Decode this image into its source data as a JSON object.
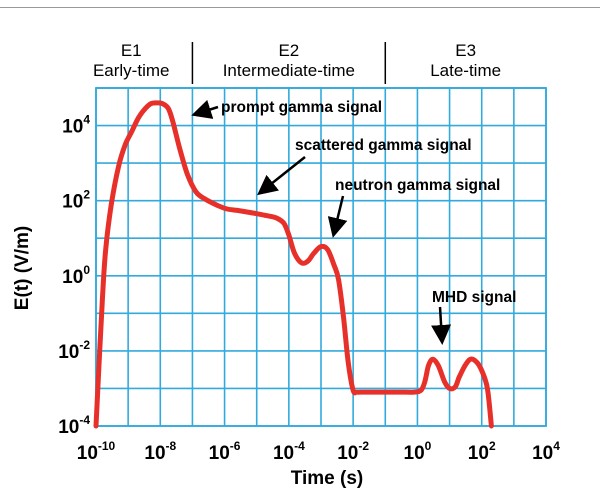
{
  "colors": {
    "grid": "#33aadd",
    "curve": "#e8302a",
    "text": "#000000",
    "arrow": "#000000"
  },
  "chart_data": {
    "type": "line",
    "title": "",
    "xlabel": "Time (s)",
    "ylabel": "E(t) (V/m)",
    "x_scale": "log",
    "y_scale": "log",
    "xlim": [
      1e-10,
      10000.0
    ],
    "ylim": [
      0.0001,
      100000.0
    ],
    "grid": true,
    "x_ticks": [
      {
        "base": "10",
        "exp": "-10"
      },
      {
        "base": "10",
        "exp": "-8"
      },
      {
        "base": "10",
        "exp": "-6"
      },
      {
        "base": "10",
        "exp": "-4"
      },
      {
        "base": "10",
        "exp": "-2"
      },
      {
        "base": "10",
        "exp": "0"
      },
      {
        "base": "10",
        "exp": "2"
      },
      {
        "base": "10",
        "exp": "4"
      }
    ],
    "y_ticks": [
      {
        "base": "10",
        "exp": "-4"
      },
      {
        "base": "10",
        "exp": "-2"
      },
      {
        "base": "10",
        "exp": "0"
      },
      {
        "base": "10",
        "exp": "2"
      },
      {
        "base": "10",
        "exp": "4"
      }
    ],
    "regions": [
      {
        "name": "E1",
        "subtitle": "Early-time",
        "x_start": 1e-10,
        "x_end": 1e-07
      },
      {
        "name": "E2",
        "subtitle": "Intermediate-time",
        "x_start": 1e-07,
        "x_end": 0.1
      },
      {
        "name": "E3",
        "subtitle": "Late-time",
        "x_start": 0.1,
        "x_end": 10000.0
      }
    ],
    "annotations": [
      {
        "text": "prompt gamma signal",
        "point": [
          3e-07,
          10000
        ]
      },
      {
        "text": "scattered gamma signal",
        "point": [
          6e-06,
          80
        ]
      },
      {
        "text": "neutron gamma signal",
        "point": [
          0.0015,
          7
        ]
      },
      {
        "text": "MHD signal",
        "point": [
          5,
          0.006
        ]
      }
    ],
    "series": [
      {
        "x": [
          1e-10,
          1.3e-10,
          1.6e-10,
          2e-10,
          3e-10,
          5e-10,
          8e-10,
          1.3e-09,
          2e-09,
          3e-09,
          5e-09,
          8e-09,
          1.2e-08,
          1.8e-08,
          2.5e-08,
          4e-08,
          7e-08,
          1.3e-07,
          2.5e-07,
          6e-07,
          1.2e-06,
          2.5e-06,
          5e-06,
          1e-05,
          2e-05,
          4e-05,
          7e-05,
          0.0001,
          0.00015,
          0.00025,
          0.0004,
          0.0006,
          0.001,
          0.0016,
          0.0025,
          0.0035,
          0.005,
          0.007,
          0.01,
          0.013,
          0.02,
          0.05,
          0.1,
          0.3,
          0.8,
          1.3,
          1.7,
          2.2,
          3,
          4.5,
          7,
          10,
          15,
          20,
          30,
          45,
          70,
          100,
          150,
          200
        ],
        "y": [
          0.0001,
          0.01,
          0.3,
          5,
          80,
          800,
          3000,
          7000,
          15000,
          25000,
          38000,
          40000,
          38000,
          28000,
          12000,
          2500,
          500,
          170,
          110,
          75,
          60,
          55,
          50,
          45,
          40,
          35,
          25,
          12,
          4,
          2.2,
          2.5,
          4,
          6,
          5,
          2,
          0.8,
          0.08,
          0.005,
          0.0009,
          0.0008,
          0.0008,
          0.0008,
          0.0008,
          0.0008,
          0.0008,
          0.0009,
          0.0015,
          0.004,
          0.006,
          0.004,
          0.0015,
          0.001,
          0.0011,
          0.002,
          0.004,
          0.006,
          0.005,
          0.003,
          0.001,
          0.0001
        ]
      }
    ]
  }
}
